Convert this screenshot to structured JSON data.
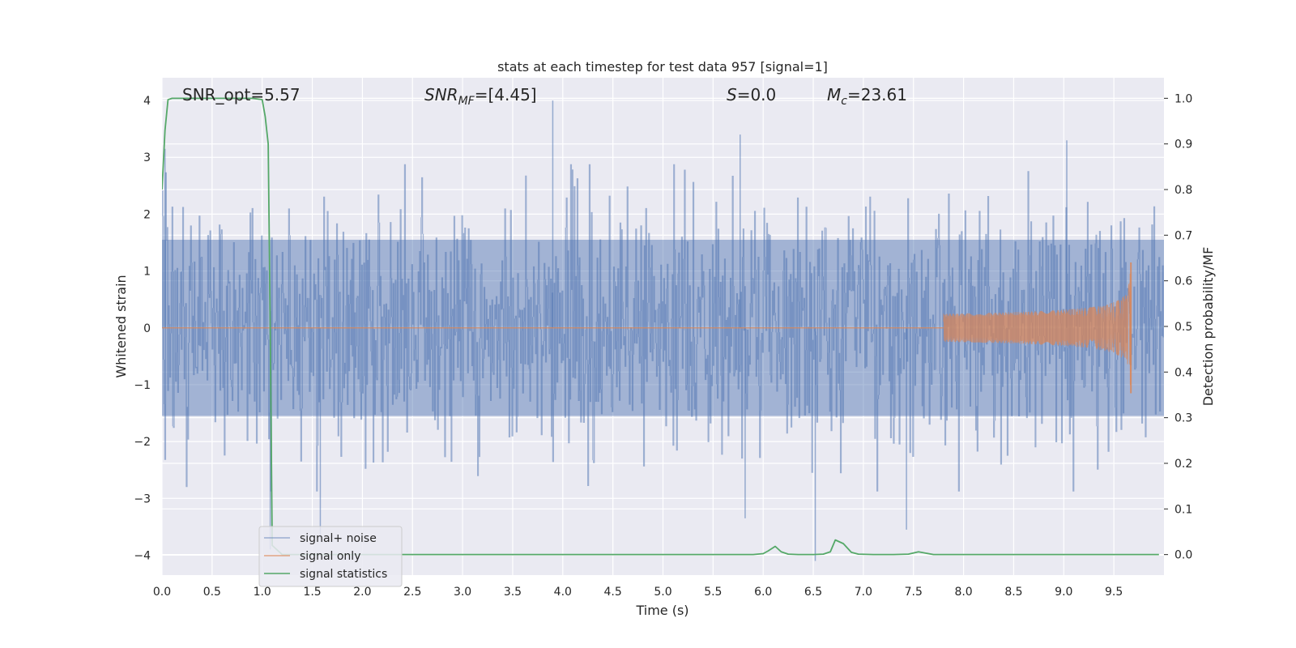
{
  "chart_data": {
    "type": "line",
    "title": "stats at each timestep for test data 957 [signal=1]",
    "xlabel": "Time (s)",
    "ylabel": "Whitened strain",
    "y2label": "Detection probability/MF",
    "xlim": [
      0,
      10
    ],
    "ylim": [
      -4.35,
      4.4
    ],
    "y2lim": [
      -0.045,
      1.045
    ],
    "xticks": [
      "0.0",
      "0.5",
      "1.0",
      "1.5",
      "2.0",
      "2.5",
      "3.0",
      "3.5",
      "4.0",
      "4.5",
      "5.0",
      "5.5",
      "6.0",
      "6.5",
      "7.0",
      "7.5",
      "8.0",
      "8.5",
      "9.0",
      "9.5"
    ],
    "yticks": [
      "−4",
      "−3",
      "−2",
      "−1",
      "0",
      "1",
      "2",
      "3",
      "4"
    ],
    "y2ticks": [
      "0.0",
      "0.1",
      "0.2",
      "0.3",
      "0.4",
      "0.5",
      "0.6",
      "0.7",
      "0.8",
      "0.9",
      "1.0"
    ],
    "grid": true,
    "legend_position": "lower-left",
    "annotations": {
      "snr_opt": "SNR_opt=5.57",
      "snr_mf_base": "SNR",
      "snr_mf_sub": "MF",
      "snr_mf_value": "=[4.45]",
      "s_label": "S",
      "s_value": "=0.0",
      "mc_base": "M",
      "mc_sub": "c",
      "mc_value": "=23.61"
    },
    "series": [
      {
        "name": "signal+ noise",
        "color": "#4c72b0",
        "kind": "noise",
        "x_range": [
          0,
          10
        ],
        "envelope_max": 4.0,
        "spikes": [
          [
            0.03,
            3.15
          ],
          [
            1.08,
            -3.9
          ],
          [
            1.58,
            -3.7
          ],
          [
            3.9,
            4.0
          ],
          [
            5.77,
            3.4
          ],
          [
            5.82,
            -3.35
          ],
          [
            6.52,
            -4.1
          ],
          [
            7.43,
            -3.55
          ],
          [
            9.03,
            3.3
          ]
        ]
      },
      {
        "name": "signal only",
        "color": "#dd8452",
        "kind": "chirp",
        "x_start": 7.8,
        "x_merger": 9.67,
        "peak_amplitude": 1.15,
        "peak_min": -1.15
      },
      {
        "name": "signal statistics",
        "color": "#55a868",
        "axis": "right",
        "x": [
          0.0,
          0.03,
          0.06,
          0.1,
          0.2,
          0.3,
          0.5,
          0.7,
          0.9,
          1.0,
          1.03,
          1.06,
          1.08,
          1.1,
          1.2,
          1.5,
          2.0,
          3.0,
          4.0,
          5.0,
          5.5,
          5.9,
          6.0,
          6.05,
          6.12,
          6.18,
          6.25,
          6.35,
          6.5,
          6.6,
          6.67,
          6.72,
          6.8,
          6.88,
          6.95,
          7.1,
          7.3,
          7.45,
          7.55,
          7.6,
          7.7,
          8.0,
          9.0,
          9.95
        ],
        "y": [
          0.8,
          0.93,
          0.997,
          1.0,
          1.0,
          1.0,
          1.0,
          1.0,
          1.0,
          0.997,
          0.96,
          0.9,
          0.5,
          0.02,
          0.0,
          0.0,
          0.0,
          0.0,
          0.0,
          0.0,
          0.0,
          0.0,
          0.002,
          0.008,
          0.018,
          0.006,
          0.001,
          0.0,
          0.0,
          0.001,
          0.006,
          0.032,
          0.024,
          0.005,
          0.001,
          0.0,
          0.0,
          0.001,
          0.006,
          0.004,
          0.0,
          0.0,
          0.0,
          0.0
        ]
      }
    ]
  }
}
